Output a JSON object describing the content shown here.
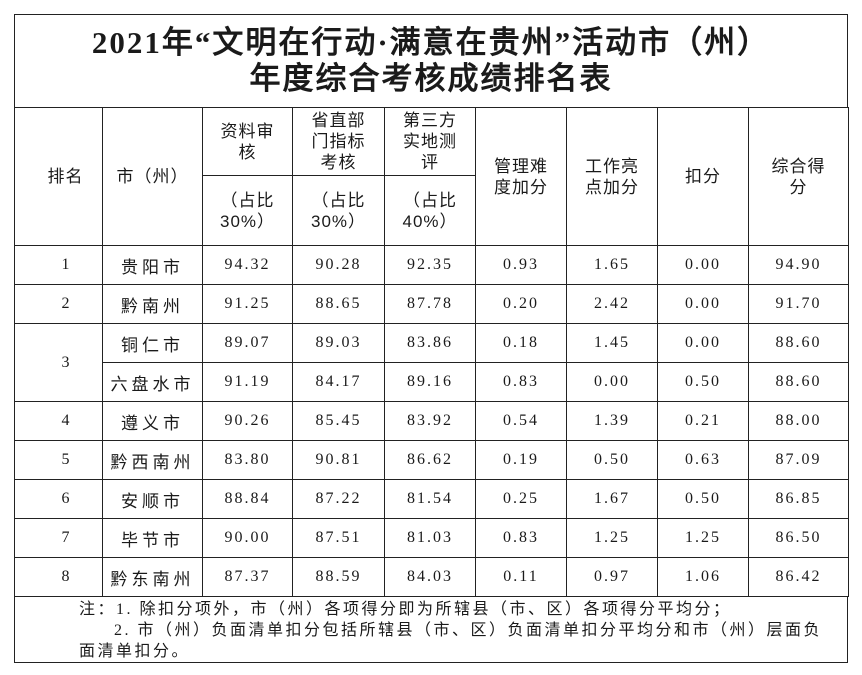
{
  "title": {
    "line1": "2021年“文明在行动·满意在贵州”活动市（州）",
    "line2": "年度综合考核成绩排名表"
  },
  "table": {
    "headers": {
      "rank": "排名",
      "city": "市（州）",
      "material_review": "资料审核",
      "material_review_weight": "（占比30%）",
      "dept_assessment": "省直部门指标考核",
      "dept_assessment_weight": "（占比30%）",
      "third_party": "第三方实地测评",
      "third_party_weight": "（占比40%）",
      "management_bonus": "管理难度加分",
      "highlight_bonus": "工作亮点加分",
      "deduction": "扣分",
      "total": "综合得分"
    },
    "groups": [
      {
        "rank": "1",
        "entries": [
          {
            "city": "贵阳市",
            "scores": [
              "94.32",
              "90.28",
              "92.35",
              "0.93",
              "1.65",
              "0.00",
              "94.90"
            ]
          }
        ]
      },
      {
        "rank": "2",
        "entries": [
          {
            "city": "黔南州",
            "scores": [
              "91.25",
              "88.65",
              "87.78",
              "0.20",
              "2.42",
              "0.00",
              "91.70"
            ]
          }
        ]
      },
      {
        "rank": "3",
        "entries": [
          {
            "city": "铜仁市",
            "scores": [
              "89.07",
              "89.03",
              "83.86",
              "0.18",
              "1.45",
              "0.00",
              "88.60"
            ]
          },
          {
            "city": "六盘水市",
            "scores": [
              "91.19",
              "84.17",
              "89.16",
              "0.83",
              "0.00",
              "0.50",
              "88.60"
            ]
          }
        ]
      },
      {
        "rank": "4",
        "entries": [
          {
            "city": "遵义市",
            "scores": [
              "90.26",
              "85.45",
              "83.92",
              "0.54",
              "1.39",
              "0.21",
              "88.00"
            ]
          }
        ]
      },
      {
        "rank": "5",
        "entries": [
          {
            "city": "黔西南州",
            "scores": [
              "83.80",
              "90.81",
              "86.62",
              "0.19",
              "0.50",
              "0.63",
              "87.09"
            ]
          }
        ]
      },
      {
        "rank": "6",
        "entries": [
          {
            "city": "安顺市",
            "scores": [
              "88.84",
              "87.22",
              "81.54",
              "0.25",
              "1.67",
              "0.50",
              "86.85"
            ]
          }
        ]
      },
      {
        "rank": "7",
        "entries": [
          {
            "city": "毕节市",
            "scores": [
              "90.00",
              "87.51",
              "81.03",
              "0.83",
              "1.25",
              "1.25",
              "86.50"
            ]
          }
        ]
      },
      {
        "rank": "8",
        "entries": [
          {
            "city": "黔东南州",
            "scores": [
              "87.37",
              "88.59",
              "84.03",
              "0.11",
              "0.97",
              "1.06",
              "86.42"
            ]
          }
        ]
      }
    ]
  },
  "notes": [
    "注：1. 除扣分项外，市（州）各项得分即为所辖县（市、区）各项得分平均分；",
    "2. 市（州）负面清单扣分包括所辖县（市、区）负面清单扣分平均分和市（州）层面负面清单扣分。"
  ]
}
